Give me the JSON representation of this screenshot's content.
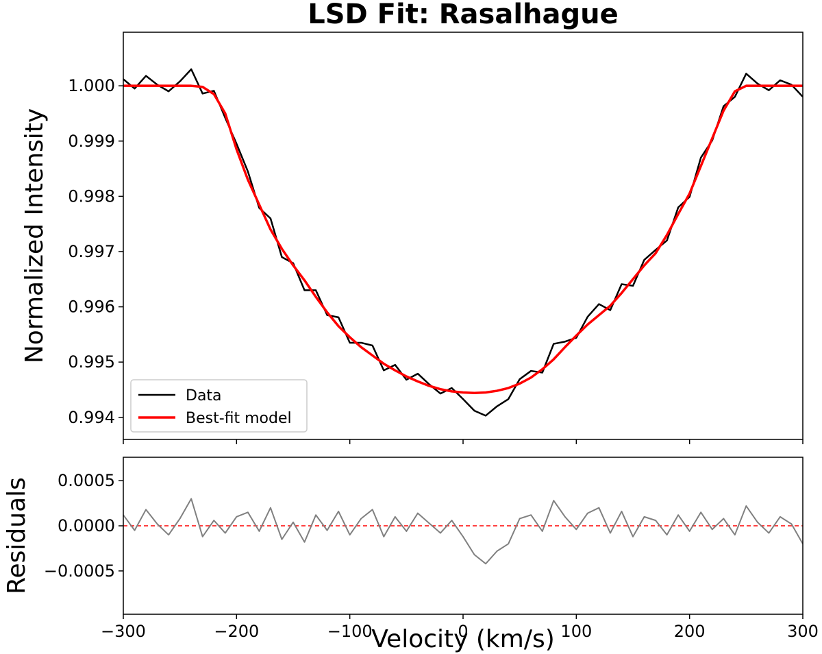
{
  "chart_data": [
    {
      "type": "line",
      "title": "LSD Fit: Rasalhague",
      "ylabel": "Normalized Intensity",
      "x": [
        -300,
        -290,
        -280,
        -270,
        -260,
        -250,
        -240,
        -230,
        -220,
        -210,
        -200,
        -190,
        -180,
        -170,
        -160,
        -150,
        -140,
        -130,
        -120,
        -110,
        -100,
        -90,
        -80,
        -70,
        -60,
        -50,
        -40,
        -30,
        -20,
        -10,
        0,
        10,
        20,
        30,
        40,
        50,
        60,
        70,
        80,
        90,
        100,
        110,
        120,
        130,
        140,
        150,
        160,
        170,
        180,
        190,
        200,
        210,
        220,
        230,
        240,
        250,
        260,
        270,
        280,
        290,
        300
      ],
      "series": [
        {
          "name": "Data",
          "color": "#000000",
          "width": 2.5,
          "values": [
            1.00012,
            0.99995,
            1.00018,
            1.00002,
            0.9999,
            1.00008,
            1.0003,
            0.99986,
            0.99991,
            0.99942,
            0.99895,
            0.99845,
            0.99779,
            0.9976,
            0.9969,
            0.99679,
            0.9963,
            0.9963,
            0.99585,
            0.99581,
            0.99535,
            0.99535,
            0.9953,
            0.99485,
            0.99495,
            0.99468,
            0.99479,
            0.9946,
            0.99443,
            0.99453,
            0.99433,
            0.99412,
            0.99403,
            0.9942,
            0.99433,
            0.99469,
            0.99484,
            0.99481,
            0.99533,
            0.99537,
            0.99544,
            0.99582,
            0.99605,
            0.99594,
            0.99641,
            0.99638,
            0.99685,
            0.99703,
            0.9972,
            0.9978,
            0.99799,
            0.9987,
            0.99901,
            0.99963,
            0.9998,
            1.00022,
            1.00004,
            0.99992,
            1.0001,
            1.00002,
            0.9998
          ]
        },
        {
          "name": "Best-fit model",
          "color": "#ff0000",
          "width": 3.5,
          "values": [
            1.0,
            1.0,
            1.0,
            1.0,
            1.0,
            1.0,
            1.0,
            0.99998,
            0.99985,
            0.9995,
            0.99885,
            0.9983,
            0.99785,
            0.9974,
            0.99705,
            0.99675,
            0.99648,
            0.99618,
            0.9959,
            0.99565,
            0.99545,
            0.99527,
            0.99512,
            0.99497,
            0.99485,
            0.99474,
            0.99465,
            0.99457,
            0.99451,
            0.99447,
            0.99445,
            0.99444,
            0.99445,
            0.99448,
            0.99453,
            0.99461,
            0.99472,
            0.99487,
            0.99505,
            0.99527,
            0.99548,
            0.99568,
            0.99585,
            0.99602,
            0.99625,
            0.9965,
            0.99675,
            0.99697,
            0.9973,
            0.99768,
            0.99805,
            0.99855,
            0.99905,
            0.99955,
            0.9999,
            1.0,
            1.0,
            1.0,
            1.0,
            1.0,
            1.0
          ]
        }
      ],
      "xlim": [
        -300,
        300
      ],
      "xticks": [
        -300,
        -200,
        -100,
        0,
        100,
        200,
        300
      ],
      "xticklabels": false,
      "ylim": [
        0.9936,
        1.00097
      ],
      "yticks": [
        0.994,
        0.995,
        0.996,
        0.997,
        0.998,
        0.999,
        {
          "value": 1.0,
          "label": "1.000"
        }
      ],
      "legend": "lower left"
    },
    {
      "type": "line",
      "ylabel": "Residuals",
      "xlabel": "Velocity (km/s)",
      "x": [
        -300,
        -290,
        -280,
        -270,
        -260,
        -250,
        -240,
        -230,
        -220,
        -210,
        -200,
        -190,
        -180,
        -170,
        -160,
        -150,
        -140,
        -130,
        -120,
        -110,
        -100,
        -90,
        -80,
        -70,
        -60,
        -50,
        -40,
        -30,
        -20,
        -10,
        0,
        10,
        20,
        30,
        40,
        50,
        60,
        70,
        80,
        90,
        100,
        110,
        120,
        130,
        140,
        150,
        160,
        170,
        180,
        190,
        200,
        210,
        220,
        230,
        240,
        250,
        260,
        270,
        280,
        290,
        300
      ],
      "series": [
        {
          "color": "#808080",
          "width": 2,
          "values": [
            0.00012,
            -5e-05,
            0.00018,
            2e-05,
            -0.0001,
            8e-05,
            0.0003,
            -0.00012,
            6e-05,
            -8e-05,
            0.0001,
            0.00015,
            -6e-05,
            0.0002,
            -0.00015,
            4e-05,
            -0.00018,
            0.00012,
            -5e-05,
            0.00016,
            -0.0001,
            8e-05,
            0.00018,
            -0.00012,
            0.0001,
            -6e-05,
            0.00014,
            3e-05,
            -8e-05,
            6e-05,
            -0.00012,
            -0.00032,
            -0.00042,
            -0.00028,
            -0.0002,
            8e-05,
            0.00012,
            -6e-05,
            0.00028,
            0.0001,
            -4e-05,
            0.00014,
            0.0002,
            -8e-05,
            0.00016,
            -0.00012,
            0.0001,
            6e-05,
            -0.0001,
            0.00012,
            -6e-05,
            0.00015,
            -4e-05,
            8e-05,
            -0.0001,
            0.00022,
            4e-05,
            -8e-05,
            0.0001,
            2e-05,
            -0.0002
          ]
        }
      ],
      "reference_line": {
        "value": 0,
        "color": "#ff0000",
        "style": "dashed"
      },
      "xlim": [
        -300,
        300
      ],
      "xticks": [
        {
          "value": -300,
          "label": "−300"
        },
        {
          "value": -200,
          "label": "−200"
        },
        {
          "value": -100,
          "label": "−100"
        },
        0,
        100,
        200,
        300
      ],
      "xticklabels": true,
      "ylim": [
        -0.00098,
        0.00076
      ],
      "yticks": [
        {
          "value": -0.0005,
          "label": "−0.0005"
        },
        {
          "value": 0,
          "label": "0.0000"
        },
        0.0005
      ]
    }
  ]
}
